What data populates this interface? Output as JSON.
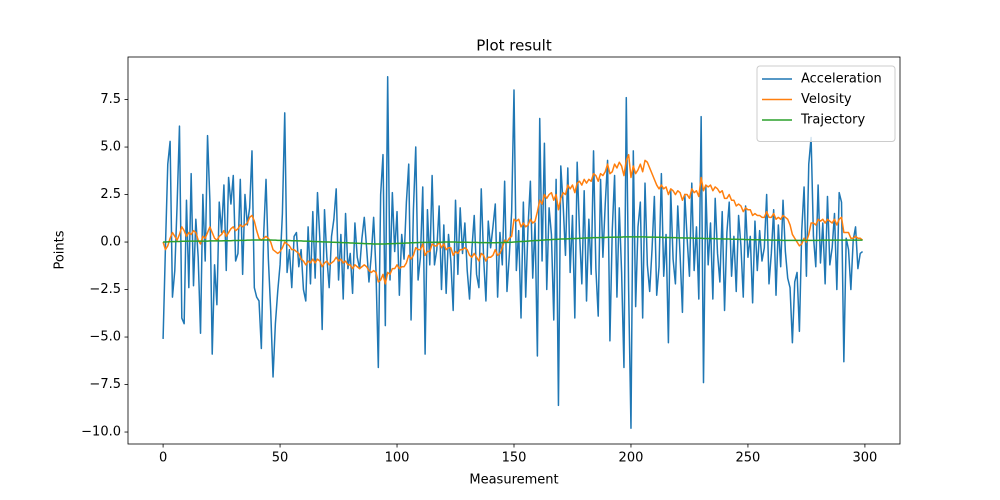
{
  "chart_data": {
    "type": "line",
    "title": "Plot result",
    "x_label": "Measurement",
    "y_label": "Points",
    "xlim": [
      -15,
      315
    ],
    "ylim": [
      -10.63,
      9.74
    ],
    "xticks": [
      0,
      50,
      100,
      150,
      200,
      250,
      300
    ],
    "yticks": [
      {
        "value": -10,
        "label": "−10.0"
      },
      {
        "value": -7.5,
        "label": "−7.5"
      },
      {
        "value": -5,
        "label": "−5.0"
      },
      {
        "value": -2.5,
        "label": "−2.5"
      },
      {
        "value": 0,
        "label": "0.0"
      },
      2.5,
      {
        "value": 5,
        "label": "5.0"
      },
      7.5
    ],
    "grid": false,
    "legend": "upper right",
    "series": [
      {
        "name": "Acceleration",
        "color": "#1f77b4",
        "values": [
          -5.1,
          -0.3,
          4.1,
          5.3,
          -2.9,
          -1.5,
          2.0,
          6.1,
          -4.0,
          -4.3,
          2.2,
          -2.4,
          3.6,
          -2.3,
          1.2,
          -0.8,
          -4.8,
          2.5,
          -1.0,
          5.6,
          2.2,
          -5.9,
          -1.2,
          -3.3,
          2.1,
          0.5,
          3.0,
          -1.5,
          3.4,
          2.0,
          3.5,
          -1.0,
          -0.6,
          3.3,
          -1.7,
          2.5,
          0.9,
          1.8,
          4.8,
          -2.4,
          -2.9,
          -3.1,
          -5.6,
          0.4,
          3.3,
          -0.9,
          -3.6,
          -7.1,
          -4.3,
          -2.6,
          -1.2,
          1.5,
          6.8,
          -1.6,
          -0.4,
          -2.4,
          0.3,
          0.5,
          -1.3,
          -0.4,
          -2.5,
          -3.1,
          0.8,
          -2.2,
          1.6,
          -1.9,
          2.6,
          0.2,
          -4.6,
          1.7,
          -0.8,
          -2.4,
          0.3,
          1.2,
          2.8,
          -2.0,
          0.4,
          -3.0,
          1.5,
          -1.4,
          -0.6,
          -2.7,
          1.0,
          -0.8,
          -1.4,
          0.2,
          1.3,
          -0.3,
          -2.1,
          -0.7,
          1.3,
          -1.5,
          -6.6,
          2.5,
          4.6,
          -4.4,
          8.7,
          -2.0,
          2.6,
          -0.5,
          1.6,
          -2.8,
          0.4,
          -0.9,
          2.1,
          4.1,
          -4.1,
          1.7,
          5.0,
          -2.0,
          -0.8,
          2.9,
          -5.9,
          1.7,
          -1.2,
          3.5,
          -1.2,
          -0.4,
          1.9,
          -2.5,
          0.9,
          -2.7,
          0.4,
          -1.0,
          -3.6,
          2.2,
          -1.7,
          1.8,
          -0.6,
          1.0,
          -1.5,
          -3.0,
          -0.4,
          1.4,
          -1.7,
          -2.4,
          2.8,
          -0.8,
          -3.1,
          1.1,
          -0.3,
          0.8,
          2.0,
          -2.9,
          0.5,
          -1.2,
          3.2,
          -2.6,
          -0.7,
          1.6,
          8.0,
          -1.5,
          0.6,
          -4.0,
          2.1,
          -2.9,
          0.8,
          3.2,
          -1.9,
          1.0,
          -6.0,
          6.5,
          -1.0,
          5.2,
          -2.5,
          1.8,
          0.4,
          -4.1,
          3.3,
          -8.6,
          4.0,
          2.0,
          -0.7,
          3.9,
          -1.6,
          1.4,
          -4.0,
          4.2,
          0.5,
          -2.2,
          2.7,
          -3.1,
          1.2,
          -1.7,
          4.8,
          -1.4,
          -3.9,
          3.3,
          -0.8,
          2.0,
          4.3,
          -5.2,
          0.6,
          3.5,
          -2.9,
          1.8,
          -1.6,
          -6.6,
          7.6,
          -2.5,
          -9.8,
          4.8,
          -3.4,
          0.8,
          2.1,
          -4.0,
          3.1,
          -1.2,
          -2.6,
          -0.4,
          2.4,
          -2.8,
          -1.3,
          3.6,
          -1.8,
          0.4,
          -5.3,
          2.7,
          -0.9,
          -2.2,
          1.9,
          -0.7,
          -3.7,
          2.5,
          0.2,
          -1.8,
          3.1,
          -1.5,
          0.8,
          -3.0,
          6.6,
          -7.4,
          2.9,
          -1.2,
          1.0,
          -3.0,
          2.3,
          -0.6,
          -2.1,
          1.6,
          -3.6,
          0.5,
          2.1,
          -1.8,
          0.3,
          -2.6,
          1.4,
          -0.2,
          -2.9,
          1.9,
          -0.8,
          0.3,
          -3.2,
          1.1,
          -1.5,
          0.6,
          -1.0,
          -0.3,
          2.5,
          -2.2,
          -0.6,
          1.7,
          -2.8,
          0.9,
          -1.3,
          2.2,
          -0.5,
          -1.9,
          -2.4,
          -5.3,
          -2.1,
          -1.6,
          -4.7,
          0.6,
          2.9,
          -1.8,
          4.1,
          5.5,
          0.3,
          -1.3,
          3.0,
          -1.1,
          1.0,
          -2.2,
          2.4,
          -1.2,
          -0.3,
          1.5,
          -2.5,
          2.6,
          2.1,
          -6.3,
          0.2,
          -0.4,
          -2.5,
          0.1,
          0.8,
          -1.4,
          -0.6,
          -0.5
        ]
      },
      {
        "name": "Velosity",
        "color": "#ff7f0e",
        "values": [
          0,
          -0.4,
          -0.2,
          0.2,
          0.5,
          0.3,
          0.1,
          0.4,
          0.8,
          0.6,
          0.3,
          0.5,
          0.4,
          0.6,
          0.5,
          0.1,
          -0.1,
          0.3,
          0.2,
          0.5,
          0.8,
          0.5,
          0.2,
          0.1,
          0.3,
          0.4,
          0.6,
          0.3,
          0.5,
          0.7,
          0.8,
          0.6,
          0.7,
          0.9,
          0.8,
          0.9,
          1.0,
          1.3,
          1.4,
          1.1,
          0.6,
          0.2,
          0.1,
          0.2,
          0.3,
          0.2,
          0,
          -0.4,
          -0.5,
          -0.6,
          -0.5,
          -0.3,
          0,
          -0.1,
          -0.2,
          -0.4,
          -0.4,
          -0.5,
          -0.6,
          -0.9,
          -1.0,
          -1.2,
          -1.0,
          -1.1,
          -0.9,
          -1.1,
          -0.9,
          -1.0,
          -1.3,
          -1.1,
          -1.0,
          -1.2,
          -1.1,
          -1.0,
          -0.8,
          -1.0,
          -0.9,
          -1.1,
          -1.0,
          -1.2,
          -1.2,
          -1.4,
          -1.2,
          -1.3,
          -1.4,
          -1.3,
          -1.2,
          -1.3,
          -1.5,
          -1.6,
          -1.5,
          -1.6,
          -2.1,
          -2.0,
          -1.7,
          -2.2,
          -1.6,
          -1.7,
          -1.4,
          -1.4,
          -1.2,
          -1.4,
          -1.3,
          -1.3,
          -1.1,
          -0.7,
          -0.9,
          -0.7,
          -0.3,
          -0.4,
          -0.4,
          -0.1,
          -0.7,
          -0.5,
          -0.5,
          -0.1,
          -0.2,
          -0.2,
          0,
          -0.3,
          -0.1,
          -0.4,
          -0.3,
          -0.3,
          -0.7,
          -0.5,
          -0.6,
          -0.4,
          -0.4,
          -0.3,
          -0.4,
          -0.7,
          -0.8,
          -0.6,
          -0.8,
          -1.0,
          -0.6,
          -0.7,
          -1.0,
          -0.8,
          -0.8,
          -0.7,
          -0.4,
          -0.7,
          -0.6,
          -0.3,
          0.1,
          0,
          0.2,
          0.3,
          1.2,
          1.1,
          1.2,
          0.8,
          1.0,
          0.8,
          0.9,
          1.2,
          1.0,
          1.1,
          1.6,
          2.2,
          2.0,
          2.5,
          2.3,
          2.5,
          2.6,
          2.2,
          2.5,
          1.7,
          2.3,
          2.6,
          2.5,
          3.0,
          2.8,
          3.0,
          2.6,
          3.1,
          3.2,
          3.0,
          3.3,
          3.1,
          3.3,
          3.2,
          3.6,
          3.5,
          3.2,
          3.6,
          3.5,
          3.7,
          4.1,
          3.6,
          3.7,
          4.1,
          3.9,
          4.2,
          4.0,
          3.5,
          4.3,
          4.6,
          3.4,
          4.0,
          3.6,
          3.8,
          4.1,
          3.7,
          4.3,
          4.2,
          3.9,
          3.6,
          3.3,
          3.0,
          2.8,
          3.0,
          2.8,
          2.9,
          2.5,
          2.8,
          2.7,
          2.5,
          2.7,
          2.6,
          2.2,
          2.5,
          2.5,
          2.3,
          2.8,
          2.6,
          2.7,
          2.4,
          3.4,
          2.7,
          3.0,
          2.9,
          3.0,
          2.7,
          2.9,
          2.8,
          2.6,
          2.7,
          2.3,
          2.3,
          2.5,
          2.2,
          2.2,
          1.9,
          2.0,
          1.9,
          1.6,
          1.8,
          1.7,
          1.7,
          1.4,
          1.5,
          1.4,
          1.4,
          1.3,
          1.3,
          1.6,
          1.3,
          1.3,
          1.5,
          1.2,
          1.3,
          1.2,
          1.4,
          1.3,
          1.2,
          0.9,
          0.4,
          0.2,
          0.0,
          -0.2,
          -0.1,
          0.2,
          0.0,
          0.4,
          1.0,
          1.0,
          0.9,
          1.2,
          1.1,
          1.2,
          1.0,
          1.2,
          1.1,
          1.0,
          1.2,
          0.9,
          1.2,
          1.3,
          0.5,
          0.5,
          0.5,
          0.2,
          0.2,
          0.3,
          0.2,
          0.2,
          0.1
        ]
      },
      {
        "name": "Trajectory",
        "color": "#2ca02c",
        "values": [
          0,
          0,
          0.01,
          0.02,
          0.02,
          0.02,
          0.03,
          0.03,
          0.04,
          0.04,
          0.04,
          0.05,
          0.05,
          0.05,
          0.05,
          0.05,
          0.05,
          0.05,
          0.05,
          0.05,
          0.06,
          0.06,
          0.06,
          0.06,
          0.06,
          0.06,
          0.07,
          0.07,
          0.07,
          0.07,
          0.08,
          0.08,
          0.08,
          0.09,
          0.09,
          0.09,
          0.1,
          0.1,
          0.11,
          0.11,
          0.11,
          0.11,
          0.11,
          0.11,
          0.11,
          0.11,
          0.11,
          0.1,
          0.1,
          0.09,
          0.09,
          0.08,
          0.08,
          0.08,
          0.08,
          0.07,
          0.07,
          0.07,
          0.06,
          0.06,
          0.05,
          0.05,
          0.04,
          0.04,
          0.03,
          0.03,
          0.02,
          0.02,
          0.01,
          0.01,
          0,
          0,
          -0.01,
          -0.01,
          -0.02,
          -0.02,
          -0.03,
          -0.03,
          -0.04,
          -0.04,
          -0.05,
          -0.05,
          -0.06,
          -0.06,
          -0.07,
          -0.07,
          -0.08,
          -0.08,
          -0.09,
          -0.09,
          -0.1,
          -0.1,
          -0.1,
          -0.1,
          -0.1,
          -0.1,
          -0.09,
          -0.09,
          -0.08,
          -0.08,
          -0.07,
          -0.07,
          -0.06,
          -0.06,
          -0.05,
          -0.05,
          -0.04,
          -0.04,
          -0.03,
          -0.03,
          -0.02,
          -0.02,
          -0.02,
          -0.02,
          -0.01,
          -0.01,
          -0.01,
          -0.01,
          -0.01,
          -0.01,
          0,
          0,
          0,
          0,
          0,
          0,
          -0.01,
          -0.01,
          -0.01,
          -0.01,
          -0.01,
          -0.02,
          -0.02,
          -0.02,
          -0.02,
          -0.03,
          -0.03,
          -0.03,
          -0.03,
          -0.04,
          -0.04,
          -0.04,
          -0.04,
          -0.03,
          -0.03,
          -0.03,
          -0.02,
          -0.02,
          -0.02,
          -0.01,
          0,
          0.01,
          0.02,
          0.03,
          0.03,
          0.04,
          0.05,
          0.06,
          0.07,
          0.08,
          0.08,
          0.09,
          0.1,
          0.11,
          0.12,
          0.12,
          0.13,
          0.14,
          0.14,
          0.15,
          0.16,
          0.16,
          0.17,
          0.17,
          0.18,
          0.18,
          0.19,
          0.19,
          0.2,
          0.2,
          0.21,
          0.21,
          0.22,
          0.22,
          0.23,
          0.23,
          0.23,
          0.24,
          0.24,
          0.24,
          0.25,
          0.25,
          0.25,
          0.26,
          0.26,
          0.26,
          0.26,
          0.27,
          0.27,
          0.27,
          0.27,
          0.27,
          0.27,
          0.27,
          0.27,
          0.27,
          0.27,
          0.26,
          0.26,
          0.26,
          0.26,
          0.25,
          0.25,
          0.25,
          0.24,
          0.24,
          0.24,
          0.23,
          0.23,
          0.23,
          0.22,
          0.22,
          0.22,
          0.21,
          0.21,
          0.21,
          0.21,
          0.2,
          0.2,
          0.2,
          0.2,
          0.19,
          0.19,
          0.19,
          0.18,
          0.18,
          0.18,
          0.17,
          0.17,
          0.17,
          0.16,
          0.16,
          0.16,
          0.15,
          0.15,
          0.15,
          0.14,
          0.14,
          0.14,
          0.13,
          0.13,
          0.13,
          0.12,
          0.12,
          0.12,
          0.12,
          0.11,
          0.11,
          0.11,
          0.11,
          0.1,
          0.1,
          0.1,
          0.1,
          0.1,
          0.09,
          0.09,
          0.09,
          0.09,
          0.09,
          0.09,
          0.09,
          0.09,
          0.09,
          0.09,
          0.09,
          0.09,
          0.09,
          0.09,
          0.09,
          0.09,
          0.1,
          0.1,
          0.1,
          0.1,
          0.1,
          0.1,
          0.1,
          0.1,
          0.1,
          0.1,
          0.1,
          0.1,
          0.1,
          0.1,
          0.1,
          0.1,
          0.1,
          0.1,
          0.1
        ]
      }
    ]
  }
}
